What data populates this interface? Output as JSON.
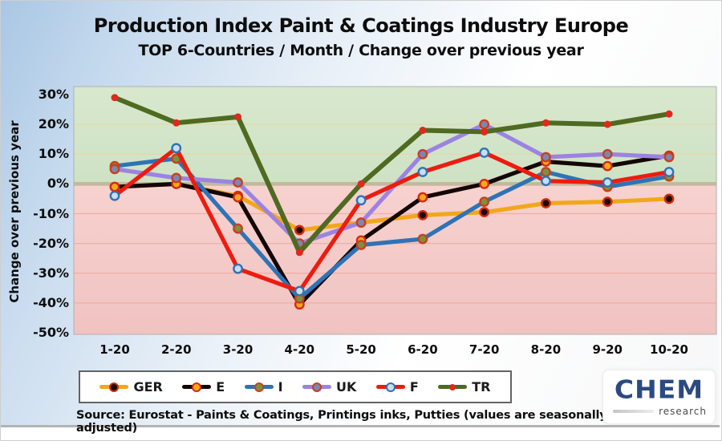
{
  "header": {
    "title": "Production Index Paint & Coatings Industry Europe",
    "subtitle": "TOP 6-Countries / Month / Change over previous year"
  },
  "chart_data": {
    "type": "line",
    "title": "Production Index Paint & Coatings Industry Europe",
    "subtitle": "TOP 6-Countries / Month / Change over previous year",
    "xlabel": "",
    "ylabel": "Change over previous year",
    "categories": [
      "1-20",
      "2-20",
      "3-20",
      "4-20",
      "5-20",
      "6-20",
      "7-20",
      "8-20",
      "9-20",
      "10-20"
    ],
    "y_ticks": [
      30,
      20,
      10,
      0,
      -10,
      -20,
      -30,
      -40,
      -50
    ],
    "ylim": [
      -50,
      30
    ],
    "grid": true,
    "legend_position": "bottom",
    "positive_zone_color": "#D8E8CE",
    "negative_zone_color": "#F7D2CF",
    "zero_band_color": "#C3B89C",
    "grid_color_positive": "#E9D4A4",
    "grid_color_negative": "#F0A99F",
    "series": [
      {
        "name": "GER",
        "color": "#F2A71B",
        "marker_fill": "#1A0A00",
        "marker_ring": "#D42B10",
        "values": [
          -1,
          0,
          -4,
          -15.5,
          -13,
          -10.5,
          -9.5,
          -6.5,
          -6,
          -5
        ]
      },
      {
        "name": "E",
        "color": "#140607",
        "marker_fill": "#F6A81C",
        "marker_ring": "#D42B10",
        "values": [
          -1,
          0,
          -4.5,
          -40.5,
          -19,
          -4.5,
          0,
          7.5,
          6,
          9.5
        ]
      },
      {
        "name": "I",
        "color": "#2E73B5",
        "marker_fill": "#7E9040",
        "marker_ring": "#C8401E",
        "values": [
          6,
          8.5,
          -15,
          -38.5,
          -20.5,
          -18.5,
          -6,
          4,
          -1,
          2.5
        ]
      },
      {
        "name": "UK",
        "color": "#9C83E2",
        "marker_fill": "#7C86B4",
        "marker_ring": "#C8401E",
        "values": [
          5,
          2,
          0.5,
          -20,
          -13,
          10,
          20,
          9,
          10,
          9
        ]
      },
      {
        "name": "F",
        "color": "#EC1C10",
        "marker_fill": "#C9DDEB",
        "marker_ring": "#2E73B5",
        "values": [
          -4,
          12,
          -28.5,
          -36,
          -5.5,
          4,
          10.5,
          1,
          0.5,
          4
        ]
      },
      {
        "name": "TR",
        "color": "#4F6A21",
        "marker_fill": "#DE2A1C",
        "marker_ring": "#DE2A1C",
        "values": [
          29,
          20.5,
          22.5,
          -23,
          0,
          18,
          17.5,
          20.5,
          20,
          23.5
        ]
      }
    ]
  },
  "footer": {
    "source": "Source: Eurostat - Paints & Coatings, Printings inks, Putties  (values are seasonally adjusted)"
  },
  "logo": {
    "brand": "CHEM",
    "tagline": "research"
  }
}
